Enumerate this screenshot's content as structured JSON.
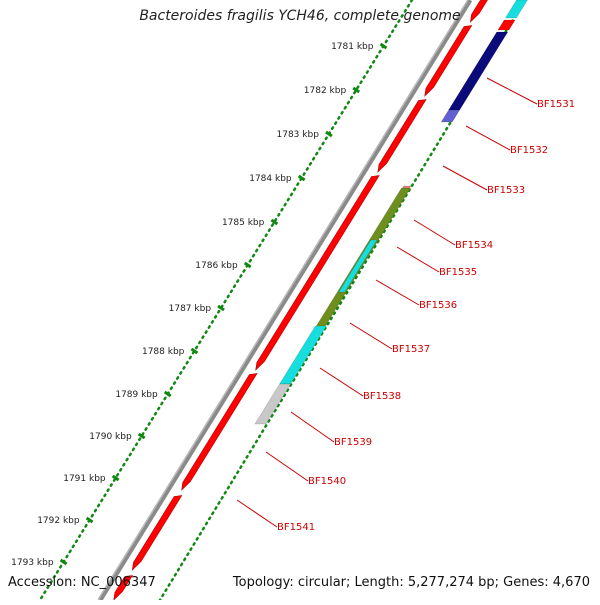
{
  "title": "Bacteroides fragilis YCH46, complete genome",
  "accession_label": "Accession: NC_006347",
  "topology_label": "Topology: circular; Length: 5,277,274 bp; Genes: 4,670",
  "ticks": [
    "1781 kbp",
    "1782 kbp",
    "1783 kbp",
    "1784 kbp",
    "1785 kbp",
    "1786 kbp",
    "1787 kbp",
    "1788 kbp",
    "1789 kbp",
    "1790 kbp",
    "1791 kbp",
    "1792 kbp",
    "1793 kbp"
  ],
  "gene_labels": [
    "BF1531",
    "BF1532",
    "BF1533",
    "BF1534",
    "BF1535",
    "BF1536",
    "BF1537",
    "BF1538",
    "BF1539",
    "BF1540",
    "BF1541"
  ],
  "colors": {
    "cds": "#ff0000",
    "cds_dark": "#c40000",
    "navy": "#0a0a7a",
    "cyan": "#16dede",
    "olive": "#6e8e1e",
    "grey": "#c8c8c8",
    "backbone": "#8a8a8a",
    "dotted": "#118811",
    "label": "#cc0000"
  }
}
